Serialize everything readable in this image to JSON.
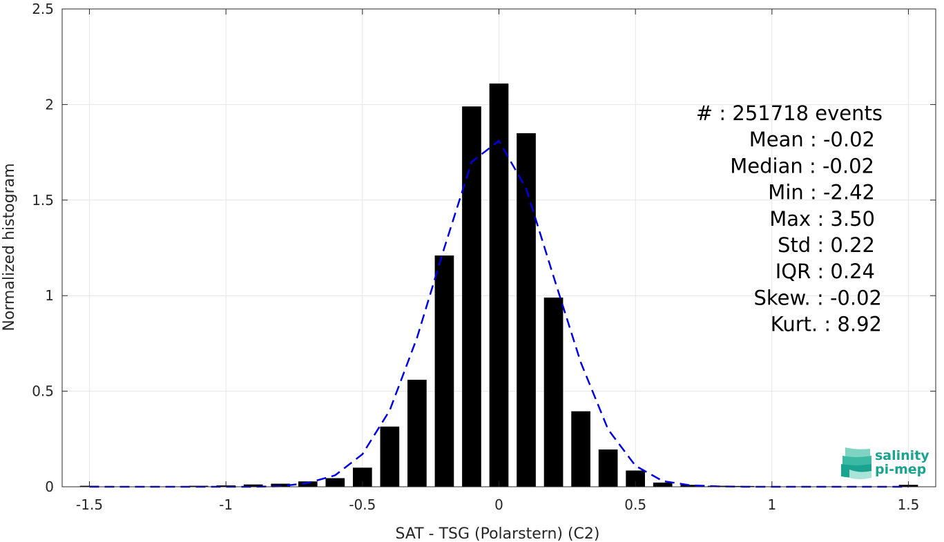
{
  "chart_data": {
    "type": "bar",
    "xlabel": "SAT - TSG (Polarstern) (C2)",
    "ylabel": "Normalized histogram",
    "xlim": [
      -1.6,
      1.6
    ],
    "ylim": [
      0,
      2.5
    ],
    "grid": true,
    "x_ticks": [
      {
        "value": -1.5,
        "label": "-1.5"
      },
      {
        "value": -1,
        "label": "-1"
      },
      {
        "value": -0.5,
        "label": "-0.5"
      },
      {
        "value": 0,
        "label": "0"
      },
      {
        "value": 0.5,
        "label": "0.5"
      },
      {
        "value": 1,
        "label": "1"
      },
      {
        "value": 1.5,
        "label": "1.5"
      }
    ],
    "y_ticks": [
      {
        "value": 0,
        "label": "0"
      },
      {
        "value": 0.5,
        "label": "0.5"
      },
      {
        "value": 1,
        "label": "1"
      },
      {
        "value": 1.5,
        "label": "1.5"
      },
      {
        "value": 2,
        "label": "2"
      },
      {
        "value": 2.5,
        "label": "2.5"
      }
    ],
    "bar_width": 0.07,
    "bars": {
      "x": [
        -1.5,
        -1.4,
        -1.3,
        -1.2,
        -1.1,
        -1.0,
        -0.9,
        -0.8,
        -0.7,
        -0.6,
        -0.5,
        -0.4,
        -0.3,
        -0.2,
        -0.1,
        0.0,
        0.1,
        0.2,
        0.3,
        0.4,
        0.5,
        0.6,
        0.7,
        0.8,
        0.9,
        1.0,
        1.1,
        1.2,
        1.3,
        1.4,
        1.5
      ],
      "values": [
        0.005,
        0.002,
        0.002,
        0.002,
        0.005,
        0.007,
        0.012,
        0.016,
        0.028,
        0.045,
        0.1,
        0.315,
        0.56,
        1.21,
        1.99,
        2.11,
        1.85,
        0.99,
        0.395,
        0.195,
        0.085,
        0.022,
        0.01,
        0.005,
        0.004,
        0.002,
        0.002,
        0.002,
        0.002,
        0.002,
        0.01
      ]
    },
    "fit_line": {
      "style": "dashed",
      "color": "#0000e6",
      "x": [
        -1.5,
        -1.4,
        -1.3,
        -1.2,
        -1.1,
        -1.0,
        -0.9,
        -0.8,
        -0.7,
        -0.6,
        -0.5,
        -0.4,
        -0.3,
        -0.2,
        -0.1,
        0.0,
        0.1,
        0.2,
        0.3,
        0.4,
        0.5,
        0.6,
        0.7,
        0.8,
        0.9,
        1.0,
        1.1,
        1.2,
        1.3,
        1.4,
        1.5
      ],
      "y": [
        0.0,
        0.0,
        0.0,
        0.0,
        0.0,
        0.0,
        0.0,
        0.003,
        0.02,
        0.06,
        0.17,
        0.4,
        0.78,
        1.25,
        1.7,
        1.81,
        1.56,
        1.1,
        0.65,
        0.3,
        0.11,
        0.03,
        0.008,
        0.002,
        0.0,
        0.0,
        0.0,
        0.0,
        0.0,
        0.0,
        0.0
      ]
    },
    "bar_color": "#000000",
    "annotations": [
      "#  : 251718 events",
      "Mean : -0.02",
      "Median : -0.02",
      "Min : -2.42",
      "Max : 3.50",
      "Std : 0.22",
      "IQR : 0.24",
      "Skew. : -0.02",
      "Kurt. : 8.92"
    ]
  },
  "logo": {
    "line1": "salinity",
    "line2": "pi-mep",
    "color": "#1aa38f"
  }
}
